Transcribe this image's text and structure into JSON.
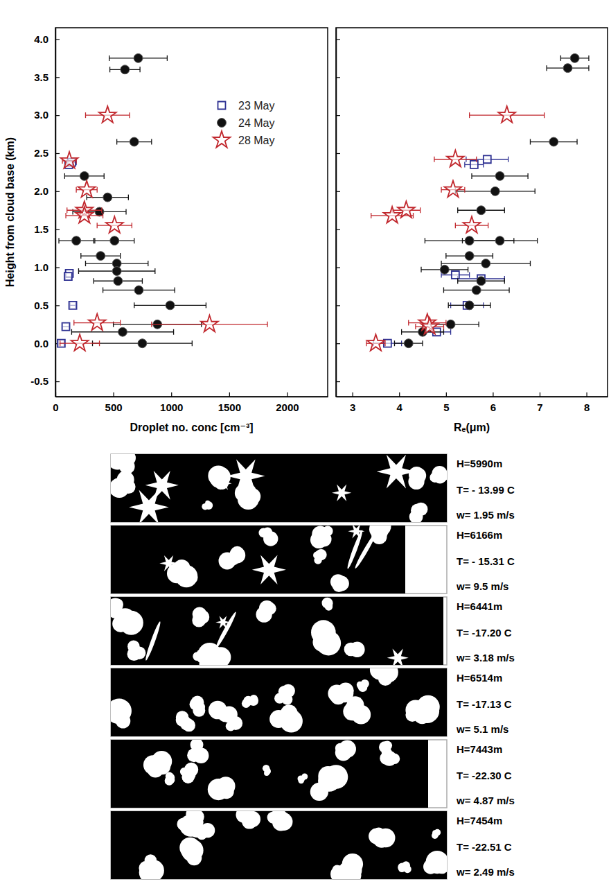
{
  "chart_data": [
    {
      "type": "scatter",
      "x_label": "Droplet no. conc [cm⁻³]",
      "y_label": "Height from cloud base (km)",
      "xlim": [
        0,
        2350
      ],
      "xticks": [
        0,
        500,
        1000,
        1500,
        2000
      ],
      "ylim": [
        -0.7,
        4.15
      ],
      "yticks": [
        -0.5,
        {
          "value": 0,
          "label": "0.0"
        },
        0.5,
        {
          "value": 1,
          "label": "1.0"
        },
        1.5,
        {
          "value": 2,
          "label": "2.0"
        },
        2.5,
        {
          "value": 3,
          "label": "3.0"
        },
        3.5,
        {
          "value": 4,
          "label": "4.0"
        }
      ],
      "legend": "upper right",
      "series": [
        {
          "name": "23 May",
          "color": "#2e3192",
          "marker": "open-square",
          "x": [
            140,
            115,
            120,
            110,
            150,
            90,
            50
          ],
          "values": [
            2.38,
            2.35,
            0.92,
            0.88,
            0.5,
            0.22,
            0.0
          ],
          "x_error": [
            40,
            30,
            30,
            25,
            25,
            30,
            25
          ]
        },
        {
          "name": "24 May",
          "color": "#111111",
          "marker": "filled-circle",
          "x": [
            715,
            600,
            680,
            250,
            450,
            380,
            180,
            510,
            390,
            530,
            530,
            540,
            720,
            990,
            880,
            580,
            750
          ],
          "values": [
            3.75,
            3.6,
            2.65,
            2.2,
            1.92,
            1.73,
            1.35,
            1.35,
            1.15,
            1.05,
            0.95,
            0.82,
            0.7,
            0.5,
            0.25,
            0.15,
            0.0
          ],
          "x_error": [
            250,
            130,
            150,
            170,
            180,
            230,
            150,
            170,
            170,
            270,
            330,
            210,
            310,
            310,
            380,
            440,
            430
          ]
        },
        {
          "name": "28 May",
          "color": "#c1272d",
          "marker": "open-star",
          "x": [
            450,
            120,
            270,
            250,
            250,
            510,
            360,
            1330,
            210
          ],
          "values": [
            3.0,
            2.4,
            2.02,
            1.75,
            1.68,
            1.55,
            0.27,
            0.25,
            0.0
          ],
          "x_error": [
            190,
            60,
            90,
            150,
            160,
            150,
            200,
            500,
            170
          ]
        }
      ]
    },
    {
      "type": "scatter",
      "x_label": "Rₑ(μm)",
      "xlim": [
        2.65,
        8.45
      ],
      "xticks": [
        3,
        4,
        5,
        6,
        7,
        8
      ],
      "ylim": [
        -0.7,
        4.15
      ],
      "yticks": [
        -0.5,
        {
          "value": 0,
          "label": "0.0"
        },
        0.5,
        {
          "value": 1,
          "label": "1.0"
        },
        1.5,
        {
          "value": 2,
          "label": "2.0"
        },
        2.5,
        {
          "value": 3,
          "label": "3.0"
        },
        3.5,
        {
          "value": 4,
          "label": "4.0"
        }
      ],
      "tick_labels": "x",
      "series": [
        {
          "color": "#2e3192",
          "marker": "open-square",
          "x": [
            5.88,
            5.6,
            5.2,
            5.75,
            5.45,
            4.8,
            3.75
          ],
          "values": [
            2.42,
            2.35,
            0.9,
            0.85,
            0.5,
            0.15,
            0.0
          ],
          "x_error": [
            0.45,
            0.2,
            0.3,
            0.5,
            0.35,
            0.3,
            0.3
          ]
        },
        {
          "color": "#111111",
          "marker": "filled-circle",
          "x": [
            7.75,
            7.6,
            7.3,
            6.15,
            6.05,
            5.75,
            5.5,
            6.15,
            5.5,
            5.85,
            4.97,
            5.75,
            5.65,
            5.5,
            5.1,
            4.5,
            4.2
          ],
          "values": [
            3.75,
            3.62,
            2.65,
            2.2,
            2.0,
            1.75,
            1.35,
            1.35,
            1.15,
            1.05,
            0.97,
            0.82,
            0.7,
            0.5,
            0.25,
            0.15,
            0.0
          ],
          "x_error": [
            0.3,
            0.45,
            0.5,
            0.6,
            0.85,
            0.5,
            0.95,
            0.8,
            0.5,
            0.95,
            0.5,
            0.5,
            0.7,
            0.45,
            0.6,
            0.45,
            0.3
          ]
        },
        {
          "color": "#c1272d",
          "marker": "open-star",
          "x": [
            6.3,
            5.2,
            5.15,
            4.15,
            3.85,
            5.55,
            4.6,
            4.65,
            3.5
          ],
          "values": [
            3.0,
            2.42,
            2.02,
            1.75,
            1.68,
            1.55,
            0.27,
            0.22,
            0.0
          ],
          "x_error": [
            0.8,
            0.45,
            0.25,
            0.3,
            0.45,
            0.35,
            0.4,
            0.3,
            0.2
          ]
        }
      ]
    }
  ],
  "image_strips": [
    {
      "labels": [
        "H=5990m",
        "T= - 13.99 C",
        "w= 1.95 m/s"
      ]
    },
    {
      "labels": [
        "H=6166m",
        "T= - 15.31 C",
        "w= 9.5 m/s"
      ]
    },
    {
      "labels": [
        "H=6441m",
        "T= -17.20 C",
        "w= 3.18 m/s"
      ]
    },
    {
      "labels": [
        "H=6514m",
        "T= -17.13 C",
        "w= 5.1 m/s"
      ]
    },
    {
      "labels": [
        "H=7443m",
        "T= -22.30 C",
        "w= 4.87 m/s"
      ]
    },
    {
      "labels": [
        "H=7454m",
        "T= -22.51 C",
        "w= 2.49 m/s"
      ]
    }
  ]
}
